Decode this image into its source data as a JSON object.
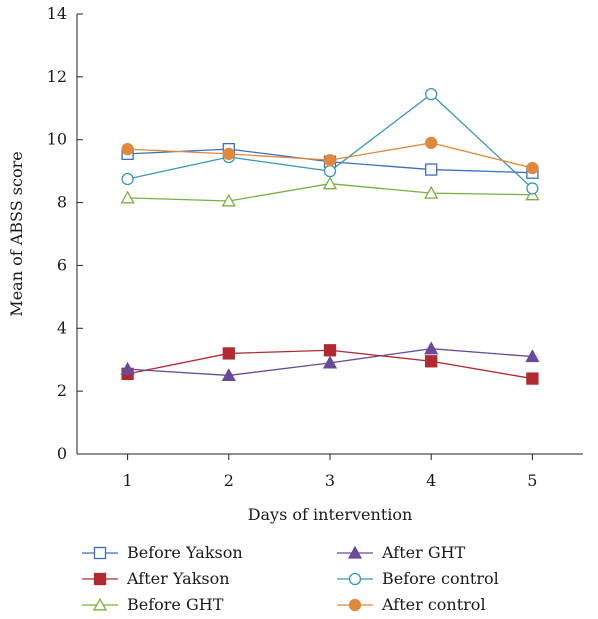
{
  "chart_data": {
    "type": "line",
    "title": "",
    "xlabel": "Days of intervention",
    "ylabel": "Mean of ABSS score",
    "x": [
      1,
      2,
      3,
      4,
      5
    ],
    "xlim": [
      0.5,
      5.5
    ],
    "ylim": [
      0,
      14
    ],
    "yticks": [
      0,
      2,
      4,
      6,
      8,
      10,
      12,
      14
    ],
    "xticks": [
      1,
      2,
      3,
      4,
      5
    ],
    "grid": false,
    "legend_position": "bottom",
    "series": [
      {
        "name": "Before Yakson",
        "values": [
          9.55,
          9.7,
          9.3,
          9.05,
          8.95
        ],
        "color": "#3a6fc0",
        "marker": "square-open"
      },
      {
        "name": "After Yakson",
        "values": [
          2.55,
          3.2,
          3.3,
          2.95,
          2.4
        ],
        "color": "#b22a31",
        "marker": "square-filled"
      },
      {
        "name": "Before GHT",
        "values": [
          8.15,
          8.05,
          8.6,
          8.3,
          8.25
        ],
        "color": "#7ab040",
        "marker": "triangle-open"
      },
      {
        "name": "After GHT",
        "values": [
          2.7,
          2.5,
          2.9,
          3.35,
          3.1
        ],
        "color": "#6a4a9a",
        "marker": "triangle-filled"
      },
      {
        "name": "Before control",
        "values": [
          8.75,
          9.45,
          9.0,
          11.45,
          8.45
        ],
        "color": "#3b97b8",
        "marker": "circle-open"
      },
      {
        "name": "After control",
        "values": [
          9.7,
          9.55,
          9.35,
          9.9,
          9.1
        ],
        "color": "#e1883c",
        "marker": "circle-filled"
      }
    ]
  }
}
